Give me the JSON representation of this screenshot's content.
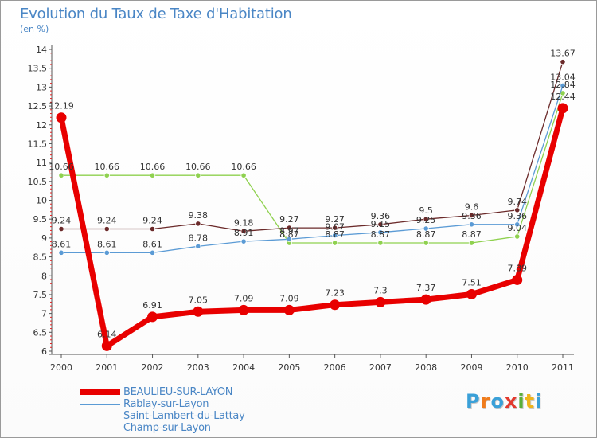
{
  "title": "Evolution du Taux de Taxe d'Habitation",
  "subtitle": "(en %)",
  "chart_data": {
    "type": "line",
    "title": "Evolution du Taux de Taxe d'Habitation",
    "subtitle": "(en %)",
    "xlabel": "",
    "ylabel": "",
    "x": [
      "2000",
      "2001",
      "2002",
      "2003",
      "2004",
      "2005",
      "2006",
      "2007",
      "2008",
      "2009",
      "2010",
      "2011"
    ],
    "ylim": [
      6,
      14
    ],
    "yticks": [
      "6",
      "6.5",
      "7",
      "7.5",
      "8",
      "8.5",
      "9",
      "9.5",
      "10",
      "10.5",
      "11",
      "11.5",
      "12",
      "12.5",
      "13",
      "13.5",
      "14"
    ],
    "grid": false,
    "legend_position": "bottom-left",
    "series": [
      {
        "name": "Saint-Lambert-du-Lattay",
        "color": "#8fd14f",
        "values": [
          10.66,
          10.66,
          10.66,
          10.66,
          10.66,
          8.87,
          8.87,
          8.87,
          8.87,
          8.87,
          9.04,
          12.84
        ],
        "labels": [
          "10.66",
          "10.66",
          "10.66",
          "10.66",
          "10.66",
          "8.87",
          "8.87",
          "8.87",
          "8.87",
          "8.87",
          "9.04",
          "12.84"
        ]
      },
      {
        "name": "Rablay-sur-Layon",
        "color": "#5b9bd5",
        "values": [
          8.61,
          8.61,
          8.61,
          8.78,
          8.91,
          8.97,
          9.07,
          9.15,
          9.25,
          9.36,
          9.36,
          13.04
        ],
        "labels": [
          "8.61",
          "8.61",
          "8.61",
          "8.78",
          "8.91",
          "8.97",
          "9.07",
          "9.15",
          "9.25",
          "9.36",
          "9.36",
          "13.04"
        ]
      },
      {
        "name": "Champ-sur-Layon",
        "color": "#6b2a2a",
        "values": [
          9.24,
          9.24,
          9.24,
          9.38,
          9.18,
          9.27,
          9.27,
          9.36,
          9.5,
          9.6,
          9.74,
          13.67
        ],
        "labels": [
          "9.24",
          "9.24",
          "9.24",
          "9.38",
          "9.18",
          "9.27",
          "9.27",
          "9.36",
          "9.5",
          "9.6",
          "9.74",
          "13.67"
        ]
      },
      {
        "name": "BEAULIEU-SUR-LAYON",
        "color": "#e80000",
        "values": [
          12.19,
          6.14,
          6.91,
          7.05,
          7.09,
          7.09,
          7.23,
          7.3,
          7.37,
          7.51,
          7.89,
          12.44
        ],
        "labels": [
          "12.19",
          "6.14",
          "6.91",
          "7.05",
          "7.09",
          "7.09",
          "7.23",
          "7.3",
          "7.37",
          "7.51",
          "7.89",
          "12.44"
        ]
      }
    ]
  },
  "legend": [
    {
      "name": "BEAULIEU-SUR-LAYON",
      "color": "#e80000",
      "thick": true
    },
    {
      "name": "Rablay-sur-Layon",
      "color": "#5b9bd5",
      "thick": false
    },
    {
      "name": "Saint-Lambert-du-Lattay",
      "color": "#8fd14f",
      "thick": false
    },
    {
      "name": "Champ-sur-Layon",
      "color": "#6b2a2a",
      "thick": false
    }
  ],
  "logo": {
    "text": "Proxiti",
    "colors": [
      "#3aa0d8",
      "#f07c1c",
      "#3aa0d8",
      "#e23a2e",
      "#5aae3a",
      "#f0b41c",
      "#3aa0d8"
    ]
  }
}
